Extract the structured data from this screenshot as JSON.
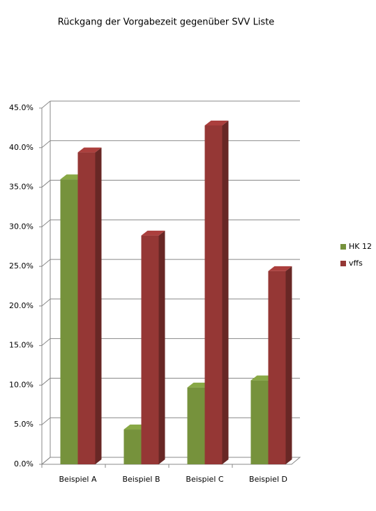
{
  "chart_data": {
    "type": "bar3d",
    "title": "Rückgang der Vorgabezeit gegenüber SVV Liste",
    "categories": [
      "Beispiel A",
      "Beispiel B",
      "Beispiel C",
      "Beispiel D"
    ],
    "series": [
      {
        "name": "HK 12",
        "color": "#76923c",
        "values": [
          36.0,
          4.4,
          9.7,
          10.6
        ]
      },
      {
        "name": "vffs",
        "color": "#953735",
        "values": [
          39.4,
          28.9,
          42.8,
          24.4
        ]
      }
    ],
    "ylim": [
      0,
      45
    ],
    "yticks": [
      {
        "value": 0,
        "label": "0.0%"
      },
      {
        "value": 5,
        "label": "5.0%"
      },
      {
        "value": 10,
        "label": "10.0%"
      },
      {
        "value": 15,
        "label": "15.0%"
      },
      {
        "value": 20,
        "label": "20.0%"
      },
      {
        "value": 25,
        "label": "25.0%"
      },
      {
        "value": 30,
        "label": "30.0%"
      },
      {
        "value": 35,
        "label": "35.0%"
      },
      {
        "value": 40,
        "label": "40.0%"
      },
      {
        "value": 45,
        "label": "45.0%"
      }
    ],
    "grid": true,
    "legend": "right"
  }
}
